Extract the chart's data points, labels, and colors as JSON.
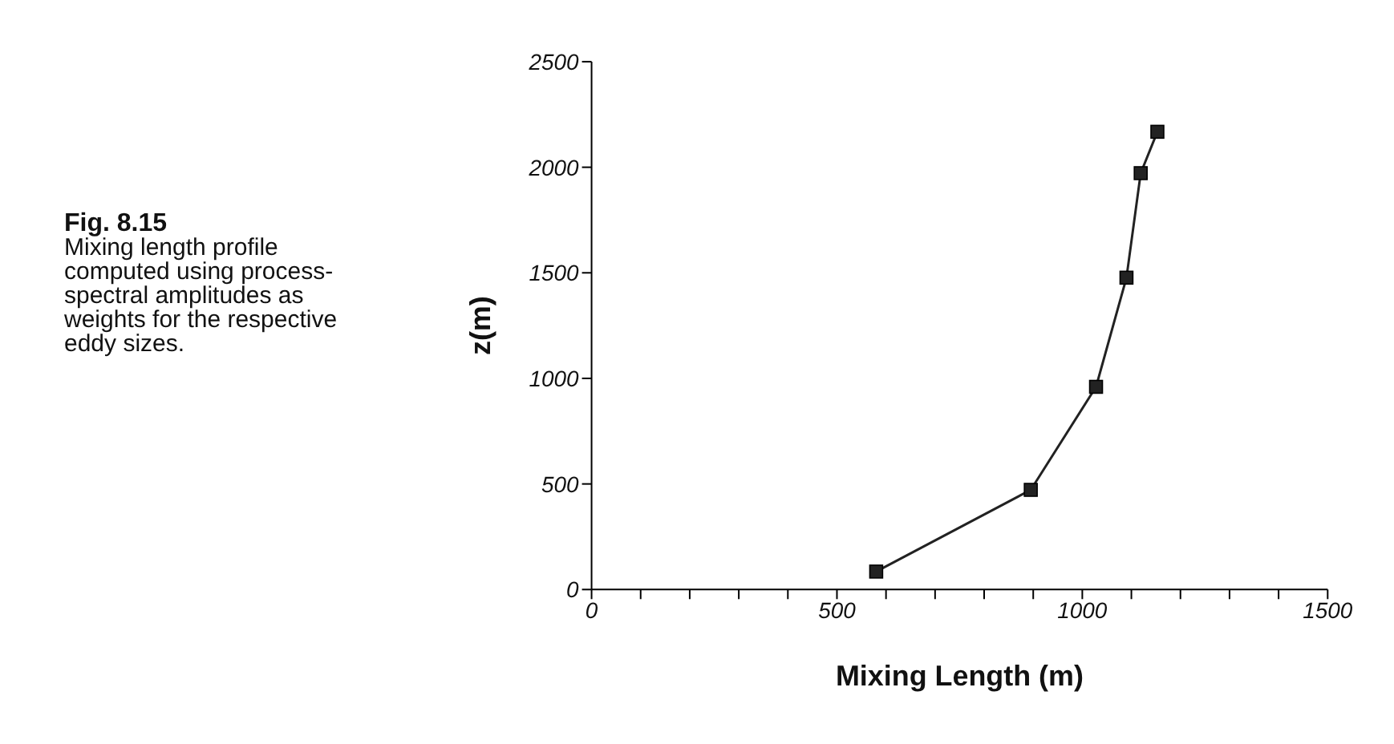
{
  "chart_data": {
    "type": "line",
    "title": "Fig. 8.15",
    "subtitle": "Mixing length profile computed using process-spectral amplitudes as weights for the respective eddy sizes.",
    "xlabel": "Mixing Length (m)",
    "ylabel": "z(m)",
    "x": [
      580,
      895,
      1028,
      1090,
      1119,
      1153
    ],
    "series": [
      {
        "color": "#222222",
        "values": [
          85,
          472,
          960,
          1477,
          1972,
          2168
        ]
      }
    ],
    "xlim": [
      0,
      1500
    ],
    "xticks": [
      0,
      {
        "value": 100,
        "label": null
      },
      {
        "value": 200,
        "label": null
      },
      {
        "value": 300,
        "label": null
      },
      {
        "value": 400,
        "label": null
      },
      500,
      {
        "value": 600,
        "label": null
      },
      {
        "value": 700,
        "label": null
      },
      {
        "value": 800,
        "label": null
      },
      {
        "value": 900,
        "label": null
      },
      1000,
      {
        "value": 1100,
        "label": null
      },
      {
        "value": 1200,
        "label": null
      },
      {
        "value": 1300,
        "label": null
      },
      {
        "value": 1400,
        "label": null
      },
      1500
    ],
    "ylim": [
      0,
      2500
    ],
    "yticks": [
      0,
      500,
      1000,
      1500,
      2000,
      2500
    ],
    "grid": false,
    "legend": false,
    "marker": "square",
    "line_style": "solid"
  }
}
